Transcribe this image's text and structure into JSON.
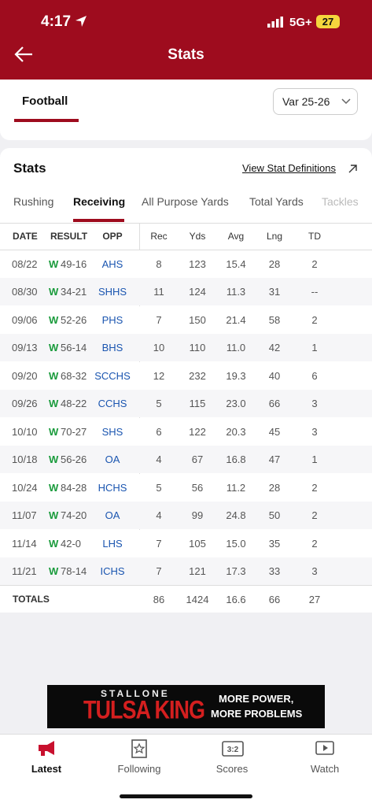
{
  "status": {
    "time": "4:17",
    "network": "5G+",
    "battery": "27"
  },
  "header": {
    "title": "Stats"
  },
  "sport": {
    "name": "Football",
    "season": "Var 25-26"
  },
  "stats": {
    "title": "Stats",
    "link": "View Stat Definitions"
  },
  "tabs": {
    "items": [
      "Rushing",
      "Receiving",
      "All Purpose Yards",
      "Total Yards",
      "Tackles"
    ],
    "active": 1
  },
  "table": {
    "columns": [
      "DATE",
      "RESULT",
      "OPP",
      "Rec",
      "Yds",
      "Avg",
      "Lng",
      "TD"
    ],
    "rows": [
      [
        "08/22",
        "W",
        "49-16",
        "AHS",
        "8",
        "123",
        "15.4",
        "28",
        "2"
      ],
      [
        "08/30",
        "W",
        "34-21",
        "SHHS",
        "11",
        "124",
        "11.3",
        "31",
        "--"
      ],
      [
        "09/06",
        "W",
        "52-26",
        "PHS",
        "7",
        "150",
        "21.4",
        "58",
        "2"
      ],
      [
        "09/13",
        "W",
        "56-14",
        "BHS",
        "10",
        "110",
        "11.0",
        "42",
        "1"
      ],
      [
        "09/20",
        "W",
        "68-32",
        "SCCHS",
        "12",
        "232",
        "19.3",
        "40",
        "6"
      ],
      [
        "09/26",
        "W",
        "48-22",
        "CCHS",
        "5",
        "115",
        "23.0",
        "66",
        "3"
      ],
      [
        "10/10",
        "W",
        "70-27",
        "SHS",
        "6",
        "122",
        "20.3",
        "45",
        "3"
      ],
      [
        "10/18",
        "W",
        "56-26",
        "OA",
        "4",
        "67",
        "16.8",
        "47",
        "1"
      ],
      [
        "10/24",
        "W",
        "84-28",
        "HCHS",
        "5",
        "56",
        "11.2",
        "28",
        "2"
      ],
      [
        "11/07",
        "W",
        "74-20",
        "OA",
        "4",
        "99",
        "24.8",
        "50",
        "2"
      ],
      [
        "11/14",
        "W",
        "42-0",
        "LHS",
        "7",
        "105",
        "15.0",
        "35",
        "2"
      ],
      [
        "11/21",
        "W",
        "78-14",
        "ICHS",
        "7",
        "121",
        "17.3",
        "33",
        "3"
      ]
    ],
    "totals": {
      "label": "TOTALS",
      "values": [
        "86",
        "1424",
        "16.6",
        "66",
        "27"
      ]
    }
  },
  "ad": {
    "line1": "STALLONE",
    "line2": "TULSA KING",
    "line3": "MORE POWER,",
    "line4": "MORE PROBLEMS"
  },
  "nav": {
    "items": [
      "Latest",
      "Following",
      "Scores",
      "Watch"
    ],
    "active": 0
  }
}
